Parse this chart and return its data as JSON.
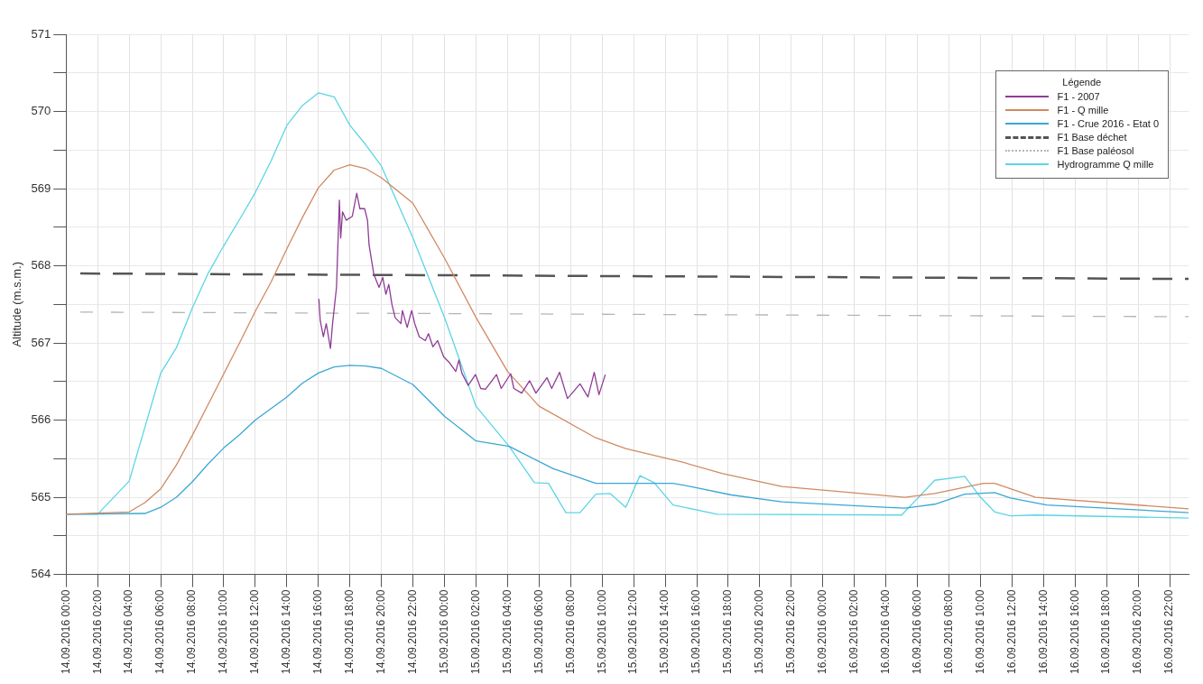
{
  "chart_data": {
    "type": "line",
    "ylabel": "Altitude (m.s.m.)",
    "legend_title": "Légende",
    "legend": "top right",
    "grid": true,
    "marker": "none",
    "xlim": [
      "2016-09-14T00:00",
      "2016-09-16T23:12"
    ],
    "ylim": [
      564,
      571
    ],
    "yticks": [
      564,
      {
        "value": 564.5,
        "label": null
      },
      565,
      {
        "value": 565.5,
        "label": null
      },
      566,
      {
        "value": 566.5,
        "label": null
      },
      567,
      {
        "value": 567.5,
        "label": null
      },
      568,
      {
        "value": 568.5,
        "label": null
      },
      569,
      {
        "value": 569.5,
        "label": null
      },
      570,
      {
        "value": 570.5,
        "label": null
      },
      571
    ],
    "xticks": [
      {
        "value": "2016-09-14T00:00",
        "label": "14.09.2016 00:00"
      },
      {
        "value": "2016-09-14T02:00",
        "label": "14.09.2016 02:00"
      },
      {
        "value": "2016-09-14T04:00",
        "label": "14.09.2016 04:00"
      },
      {
        "value": "2016-09-14T06:00",
        "label": "14.09.2016 06:00"
      },
      {
        "value": "2016-09-14T08:00",
        "label": "14.09.2016 08:00"
      },
      {
        "value": "2016-09-14T10:00",
        "label": "14.09.2016 10:00"
      },
      {
        "value": "2016-09-14T12:00",
        "label": "14.09.2016 12:00"
      },
      {
        "value": "2016-09-14T14:00",
        "label": "14.09.2016 14:00"
      },
      {
        "value": "2016-09-14T16:00",
        "label": "14.09.2016 16:00"
      },
      {
        "value": "2016-09-14T18:00",
        "label": "14.09.2016 18:00"
      },
      {
        "value": "2016-09-14T20:00",
        "label": "14.09.2016 20:00"
      },
      {
        "value": "2016-09-14T22:00",
        "label": "14.09.2016 22:00"
      },
      {
        "value": "2016-09-15T00:00",
        "label": "15.09.2016 00:00"
      },
      {
        "value": "2016-09-15T02:00",
        "label": "15.09.2016 02:00"
      },
      {
        "value": "2016-09-15T04:00",
        "label": "15.09.2016 04:00"
      },
      {
        "value": "2016-09-15T06:00",
        "label": "15.09.2016 06:00"
      },
      {
        "value": "2016-09-15T08:00",
        "label": "15.09.2016 08:00"
      },
      {
        "value": "2016-09-15T10:00",
        "label": "15.09.2016 10:00"
      },
      {
        "value": "2016-09-15T12:00",
        "label": "15.09.2016 12:00"
      },
      {
        "value": "2016-09-15T14:00",
        "label": "15.09.2016 14:00"
      },
      {
        "value": "2016-09-15T16:00",
        "label": "15.09.2016 16:00"
      },
      {
        "value": "2016-09-15T18:00",
        "label": "15.09.2016 18:00"
      },
      {
        "value": "2016-09-15T20:00",
        "label": "15.09.2016 20:00"
      },
      {
        "value": "2016-09-15T22:00",
        "label": "15.09.2016 22:00"
      },
      {
        "value": "2016-09-16T00:00",
        "label": "16.09.2016 00:00"
      },
      {
        "value": "2016-09-16T02:00",
        "label": "16.09.2016 02:00"
      },
      {
        "value": "2016-09-16T04:00",
        "label": "16.09.2016 04:00"
      },
      {
        "value": "2016-09-16T06:00",
        "label": "16.09.2016 06:00"
      },
      {
        "value": "2016-09-16T08:00",
        "label": "16.09.2016 08:00"
      },
      {
        "value": "2016-09-16T10:00",
        "label": "16.09.2016 10:00"
      },
      {
        "value": "2016-09-16T12:00",
        "label": "16.09.2016 12:00"
      },
      {
        "value": "2016-09-16T14:00",
        "label": "16.09.2016 14:00"
      },
      {
        "value": "2016-09-16T16:00",
        "label": "16.09.2016 16:00"
      },
      {
        "value": "2016-09-16T18:00",
        "label": "16.09.2016 18:00"
      },
      {
        "value": "2016-09-16T20:00",
        "label": "16.09.2016 20:00"
      },
      {
        "value": "2016-09-16T22:00",
        "label": "16.09.2016 22:00"
      }
    ],
    "series": [
      {
        "name": "F1 - 2007",
        "color": "#8e3d96",
        "line_style": "solid",
        "x": [
          "2016-09-14T16:02",
          "2016-09-14T16:07",
          "2016-09-14T16:19",
          "2016-09-14T16:30",
          "2016-09-14T16:46",
          "2016-09-14T16:54",
          "2016-09-14T17:09",
          "2016-09-14T17:20",
          "2016-09-14T17:25",
          "2016-09-14T17:32",
          "2016-09-14T17:46",
          "2016-09-14T18:09",
          "2016-09-14T18:26",
          "2016-09-14T18:38",
          "2016-09-14T18:56",
          "2016-09-14T19:07",
          "2016-09-14T19:13",
          "2016-09-14T19:31",
          "2016-09-14T19:51",
          "2016-09-14T20:05",
          "2016-09-14T20:17",
          "2016-09-14T20:28",
          "2016-09-14T20:40",
          "2016-09-14T20:52",
          "2016-09-14T21:14",
          "2016-09-14T21:20",
          "2016-09-14T21:38",
          "2016-09-14T21:55",
          "2016-09-14T22:07",
          "2016-09-14T22:24",
          "2016-09-14T22:47",
          "2016-09-14T22:59",
          "2016-09-14T23:16",
          "2016-09-14T23:34",
          "2016-09-14T23:57",
          "2016-09-15T00:20",
          "2016-09-15T00:43",
          "2016-09-15T00:55",
          "2016-09-15T01:06",
          "2016-09-15T01:30",
          "2016-09-15T01:58",
          "2016-09-15T02:18",
          "2016-09-15T02:36",
          "2016-09-15T03:18",
          "2016-09-15T03:36",
          "2016-09-15T04:12",
          "2016-09-15T04:24",
          "2016-09-15T04:54",
          "2016-09-15T05:24",
          "2016-09-15T05:48",
          "2016-09-15T06:30",
          "2016-09-15T06:48",
          "2016-09-15T07:18",
          "2016-09-15T07:48",
          "2016-09-15T08:36",
          "2016-09-15T09:06",
          "2016-09-15T09:30",
          "2016-09-15T09:48",
          "2016-09-15T10:12"
        ],
        "values": [
          567.57,
          567.29,
          567.08,
          567.25,
          566.93,
          567.25,
          567.72,
          568.85,
          568.36,
          568.7,
          568.59,
          568.64,
          568.94,
          568.74,
          568.74,
          568.59,
          568.27,
          567.89,
          567.72,
          567.85,
          567.63,
          567.76,
          567.5,
          567.33,
          567.25,
          567.42,
          567.2,
          567.42,
          567.25,
          567.08,
          567.03,
          567.12,
          566.95,
          567.03,
          566.82,
          566.74,
          566.63,
          566.78,
          566.61,
          566.45,
          566.59,
          566.41,
          566.4,
          566.59,
          566.41,
          566.6,
          566.41,
          566.35,
          566.51,
          566.35,
          566.55,
          566.41,
          566.62,
          566.28,
          566.47,
          566.3,
          566.62,
          566.33,
          566.59
        ]
      },
      {
        "name": "F1 - Q mille",
        "color": "#d08a62",
        "line_style": "solid",
        "x": [
          "2016-09-14T00:00",
          "2016-09-14T04:00",
          "2016-09-14T05:00",
          "2016-09-14T06:00",
          "2016-09-14T07:00",
          "2016-09-14T08:00",
          "2016-09-14T09:00",
          "2016-09-14T10:00",
          "2016-09-14T11:00",
          "2016-09-14T12:00",
          "2016-09-14T13:00",
          "2016-09-14T14:00",
          "2016-09-14T15:00",
          "2016-09-14T16:00",
          "2016-09-14T17:00",
          "2016-09-14T18:00",
          "2016-09-14T19:00",
          "2016-09-14T20:00",
          "2016-09-14T22:00",
          "2016-09-15T00:00",
          "2016-09-15T02:00",
          "2016-09-15T04:00",
          "2016-09-15T06:00",
          "2016-09-15T09:36",
          "2016-09-15T11:30",
          "2016-09-15T15:00",
          "2016-09-15T17:36",
          "2016-09-15T21:24",
          "2016-09-16T05:12",
          "2016-09-16T07:06",
          "2016-09-16T10:12",
          "2016-09-16T10:54",
          "2016-09-16T13:30",
          "2016-09-16T23:12"
        ],
        "values": [
          564.78,
          564.81,
          564.93,
          565.11,
          565.42,
          565.8,
          566.2,
          566.6,
          567.0,
          567.41,
          567.79,
          568.22,
          568.63,
          569.01,
          569.24,
          569.31,
          569.26,
          569.14,
          568.81,
          568.1,
          567.33,
          566.63,
          566.18,
          565.77,
          565.63,
          565.46,
          565.31,
          565.14,
          565.0,
          565.05,
          565.18,
          565.18,
          565.0,
          564.85
        ]
      },
      {
        "name": "F1 - Crue 2016 - Etat 0",
        "color": "#3ba7d4",
        "line_style": "solid",
        "x": [
          "2016-09-14T00:00",
          "2016-09-14T05:00",
          "2016-09-14T06:00",
          "2016-09-14T07:00",
          "2016-09-14T08:00",
          "2016-09-14T09:00",
          "2016-09-14T10:00",
          "2016-09-14T11:00",
          "2016-09-14T12:00",
          "2016-09-14T14:00",
          "2016-09-14T15:00",
          "2016-09-14T16:00",
          "2016-09-14T17:00",
          "2016-09-14T18:00",
          "2016-09-14T19:00",
          "2016-09-14T20:00",
          "2016-09-14T22:00",
          "2016-09-15T00:00",
          "2016-09-15T02:00",
          "2016-09-15T04:06",
          "2016-09-15T06:54",
          "2016-09-15T09:36",
          "2016-09-15T12:24",
          "2016-09-15T14:30",
          "2016-09-15T15:36",
          "2016-09-15T18:12",
          "2016-09-15T21:24",
          "2016-09-16T03:54",
          "2016-09-16T05:12",
          "2016-09-16T07:06",
          "2016-09-16T09:00",
          "2016-09-16T10:54",
          "2016-09-16T11:54",
          "2016-09-16T14:12",
          "2016-09-16T23:12"
        ],
        "values": [
          564.78,
          564.79,
          564.87,
          565.0,
          565.2,
          565.43,
          565.64,
          565.81,
          566.0,
          566.3,
          566.48,
          566.61,
          566.69,
          566.71,
          566.7,
          566.67,
          566.46,
          566.05,
          565.73,
          565.66,
          565.37,
          565.18,
          565.18,
          565.18,
          565.14,
          565.03,
          564.94,
          564.87,
          564.86,
          564.91,
          565.04,
          565.06,
          564.99,
          564.9,
          564.8
        ]
      },
      {
        "name": "F1 Base déchet",
        "color": "#555555",
        "line_style": "dashed",
        "x": [
          "2016-09-14T00:54",
          "2016-09-16T23:12"
        ],
        "values": [
          567.9,
          567.83
        ]
      },
      {
        "name": "F1 Base paléosol",
        "color": "#b5b5b5",
        "line_style": "dotted",
        "x": [
          "2016-09-14T00:54",
          "2016-09-16T23:12"
        ],
        "values": [
          567.4,
          567.34
        ]
      },
      {
        "name": "Hydrogramme Q mille",
        "color": "#5bd5e5",
        "line_style": "solid",
        "x": [
          "2016-09-14T00:00",
          "2016-09-14T02:00",
          "2016-09-14T04:00",
          "2016-09-14T06:00",
          "2016-09-14T07:00",
          "2016-09-14T08:00",
          "2016-09-14T09:00",
          "2016-09-14T10:00",
          "2016-09-14T11:00",
          "2016-09-14T12:00",
          "2016-09-14T13:00",
          "2016-09-14T14:00",
          "2016-09-14T15:00",
          "2016-09-14T16:00",
          "2016-09-14T17:00",
          "2016-09-14T18:00",
          "2016-09-14T19:00",
          "2016-09-14T20:00",
          "2016-09-14T22:00",
          "2016-09-15T00:00",
          "2016-09-15T02:00",
          "2016-09-15T04:06",
          "2016-09-15T05:42",
          "2016-09-15T06:36",
          "2016-09-15T07:42",
          "2016-09-15T08:36",
          "2016-09-15T09:36",
          "2016-09-15T10:30",
          "2016-09-15T11:30",
          "2016-09-15T12:24",
          "2016-09-15T13:18",
          "2016-09-15T14:30",
          "2016-09-15T17:18",
          "2016-09-16T05:00",
          "2016-09-16T07:06",
          "2016-09-16T09:00",
          "2016-09-16T10:00",
          "2016-09-16T10:54",
          "2016-09-16T11:54",
          "2016-09-16T13:30",
          "2016-09-16T23:12"
        ],
        "values": [
          564.78,
          564.78,
          565.21,
          566.61,
          566.94,
          567.45,
          567.9,
          568.26,
          568.6,
          568.95,
          569.36,
          569.82,
          570.08,
          570.24,
          570.19,
          569.82,
          569.57,
          569.29,
          568.36,
          567.33,
          566.18,
          565.66,
          565.19,
          565.18,
          564.8,
          564.8,
          565.04,
          565.05,
          564.87,
          565.28,
          565.19,
          564.9,
          564.78,
          564.77,
          565.22,
          565.27,
          565.0,
          564.81,
          564.76,
          564.77,
          564.73
        ]
      }
    ]
  }
}
